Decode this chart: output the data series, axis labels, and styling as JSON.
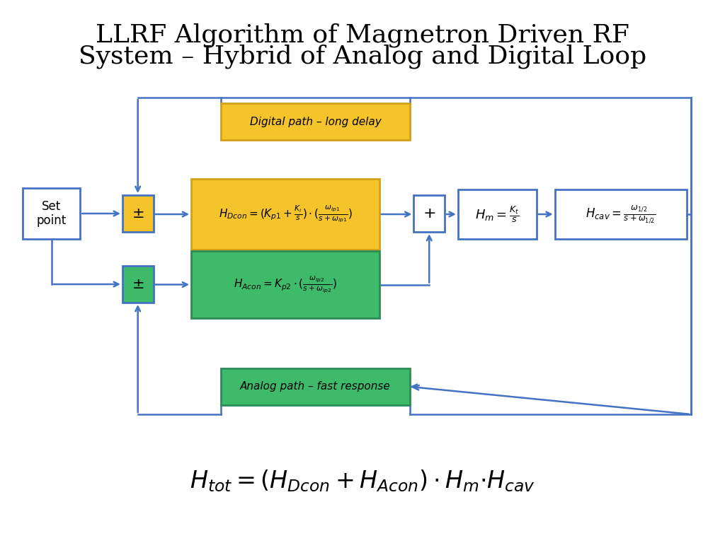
{
  "title_line1": "LLRF Algorithm of Magnetron Driven RF",
  "title_line2": "System – Hybrid of Analog and Digital Loop",
  "title_fontsize": 26,
  "background_color": "#ffffff",
  "formula": "$H_{tot} = (H_{Dcon}+H_{Acon})\\cdot H_m{\\cdot}H_{cav}$",
  "colors": {
    "yellow_fill": "#F5C42A",
    "yellow_border": "#D4A017",
    "green_fill": "#3DBB6A",
    "green_border": "#2E8B57",
    "white_fill": "#ffffff",
    "blue_border": "#4472C4",
    "arrow": "#4472C4",
    "text_dark": "#000000"
  },
  "layout": {
    "fig_w": 10.24,
    "fig_h": 7.68,
    "dpi": 100
  }
}
